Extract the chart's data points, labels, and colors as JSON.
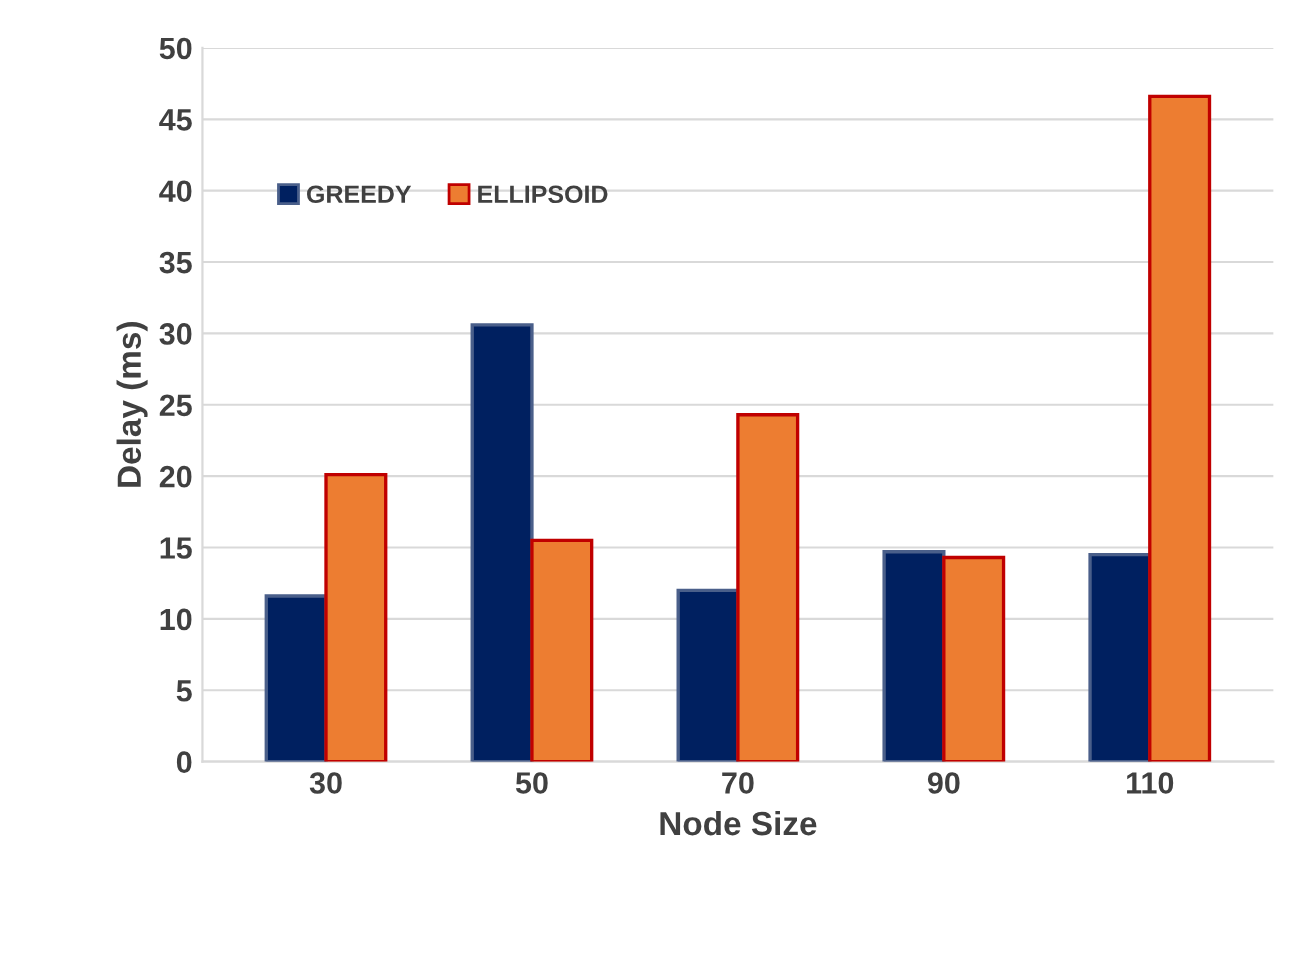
{
  "chart_data": {
    "type": "bar",
    "xlabel": "Node Size",
    "ylabel": "Delay (ms)",
    "categories": [
      "30",
      "50",
      "70",
      "90",
      "110"
    ],
    "series": [
      {
        "name": "GREEDY",
        "color": "#002060",
        "values": [
          11.6,
          30.6,
          12.0,
          14.7,
          14.5
        ]
      },
      {
        "name": "ELLIPSOID",
        "color": "#ed7d31",
        "values": [
          20.1,
          15.5,
          24.3,
          14.3,
          46.6
        ]
      }
    ],
    "ylim": [
      0,
      50
    ],
    "yticks": [
      0,
      5,
      10,
      15,
      20,
      25,
      30,
      35,
      40,
      45,
      50
    ],
    "grid": "y",
    "legend": "top left"
  }
}
